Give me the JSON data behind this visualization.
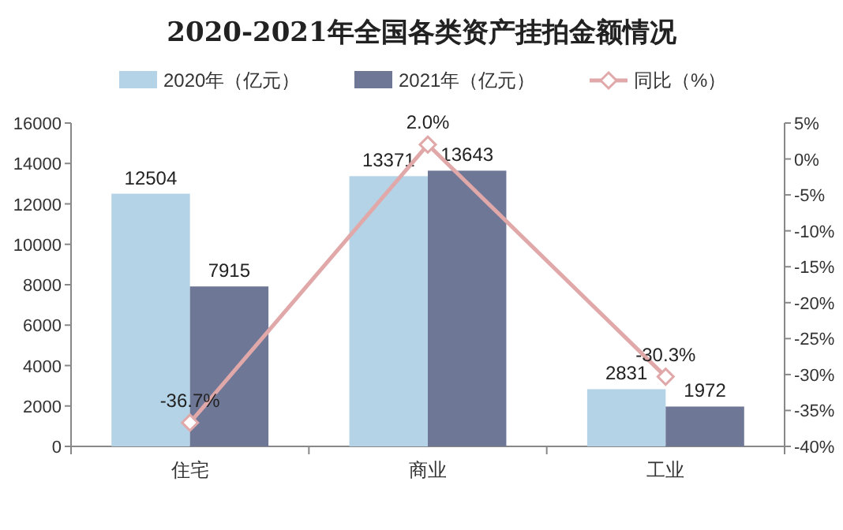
{
  "chart_data": {
    "type": "bar",
    "title": "2020-2021年全国各类资产挂拍金额情况",
    "categories": [
      "住宅",
      "商业",
      "工业"
    ],
    "series": [
      {
        "name": "2020年（亿元）",
        "color": "#b4d3e6",
        "values": [
          12504,
          13371,
          2831
        ]
      },
      {
        "name": "2021年（亿元）",
        "color": "#6f7797",
        "values": [
          7915,
          13643,
          1972
        ]
      },
      {
        "name": "同比（%）",
        "type": "line",
        "axis": "y2",
        "color": "#e0a8a8",
        "marker": "diamond",
        "values": [
          -36.7,
          2.0,
          -30.3
        ],
        "value_labels": [
          "-36.7%",
          "2.0%",
          "-30.3%"
        ]
      }
    ],
    "ylim": [
      0,
      16000
    ],
    "yticks": [
      0,
      2000,
      4000,
      6000,
      8000,
      10000,
      12000,
      14000,
      16000
    ],
    "y2lim": [
      -40,
      5
    ],
    "y2ticks": [
      {
        "value": 5,
        "label": "5%"
      },
      {
        "value": 0,
        "label": "0%"
      },
      {
        "value": -5,
        "label": "-5%"
      },
      {
        "value": -10,
        "label": "-10%"
      },
      {
        "value": -15,
        "label": "-15%"
      },
      {
        "value": -20,
        "label": "-20%"
      },
      {
        "value": -25,
        "label": "-25%"
      },
      {
        "value": -30,
        "label": "-30%"
      },
      {
        "value": -35,
        "label": "-35%"
      },
      {
        "value": -40,
        "label": "-40%"
      }
    ],
    "data_labels": true,
    "legend": "top"
  }
}
